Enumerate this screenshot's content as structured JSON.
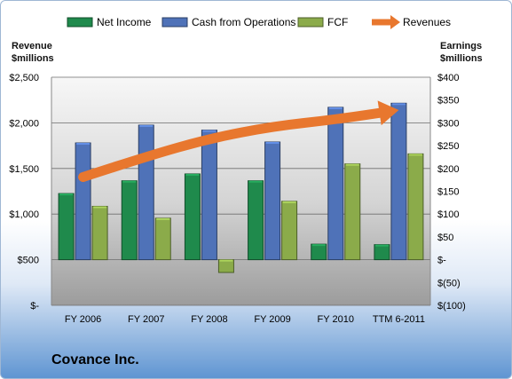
{
  "chart_data": {
    "type": "bar",
    "title": "Covance Inc.",
    "categories": [
      "FY 2006",
      "FY 2007",
      "FY 2008",
      "FY 2009",
      "FY 2010",
      "TTM 6-2011"
    ],
    "series": [
      {
        "name": "Net Income",
        "axis": "right",
        "values": [
          145,
          173,
          188,
          173,
          34,
          33
        ],
        "color": "#1f8a4c"
      },
      {
        "name": "Cash from Operations",
        "axis": "right",
        "values": [
          256,
          295,
          284,
          258,
          334,
          343
        ],
        "color": "#4f72b8"
      },
      {
        "name": "FCF",
        "axis": "right",
        "values": [
          117,
          91,
          -28,
          128,
          210,
          232
        ],
        "color": "#8bab4a"
      },
      {
        "name": "Revenues",
        "axis": "left",
        "style": "arrow",
        "color": "#e8772e",
        "values": [
          1406,
          1631,
          1827,
          1961,
          2037,
          2140
        ]
      }
    ],
    "left_axis": {
      "title_lines": [
        "Revenue",
        "$millions"
      ],
      "range": [
        0,
        2500
      ],
      "ticks": [
        "$-",
        "$500",
        "$1,000",
        "$1,500",
        "$2,000",
        "$2,500"
      ]
    },
    "right_axis": {
      "title_lines": [
        "Earnings",
        "$millions"
      ],
      "range": [
        -100,
        400
      ],
      "ticks": [
        "$(100)",
        "$(50)",
        "$-",
        "$50",
        "$100",
        "$150",
        "$200",
        "$250",
        "$300",
        "$350",
        "$400"
      ]
    },
    "legend_position": "top",
    "grid": true
  }
}
